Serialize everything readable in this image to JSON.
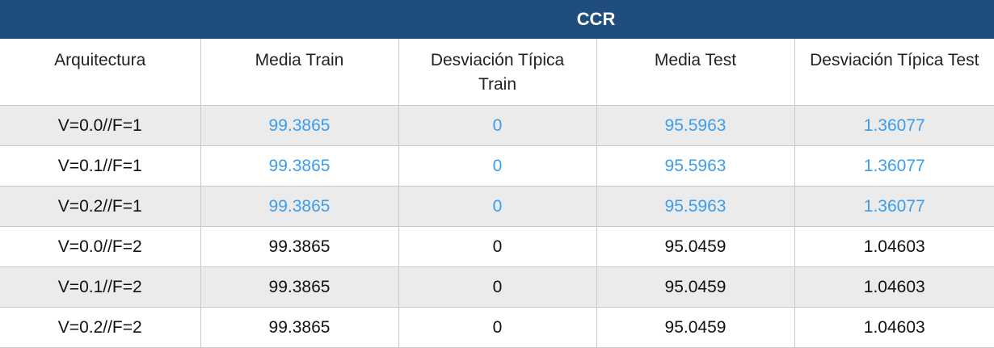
{
  "table": {
    "title": "CCR",
    "headers": [
      "Arquitectura",
      "Media Train",
      "Desviación Típica Train",
      "Media Test",
      "Desviación Típica Test"
    ],
    "rows": [
      [
        "V=0.0//F=1",
        "99.3865",
        "0",
        "95.5963",
        "1.36077"
      ],
      [
        "V=0.1//F=1",
        "99.3865",
        "0",
        "95.5963",
        "1.36077"
      ],
      [
        "V=0.2//F=1",
        "99.3865",
        "0",
        "95.5963",
        "1.36077"
      ],
      [
        "V=0.0//F=2",
        "99.3865",
        "0",
        "95.0459",
        "1.04603"
      ],
      [
        "V=0.1//F=2",
        "99.3865",
        "0",
        "95.0459",
        "1.04603"
      ],
      [
        "V=0.2//F=2",
        "99.3865",
        "0",
        "95.0459",
        "1.04603"
      ]
    ],
    "colors": {
      "header_bg": "#1f4e7e",
      "highlight_text": "#3b9ded",
      "shaded_row": "#ebebeb"
    }
  }
}
